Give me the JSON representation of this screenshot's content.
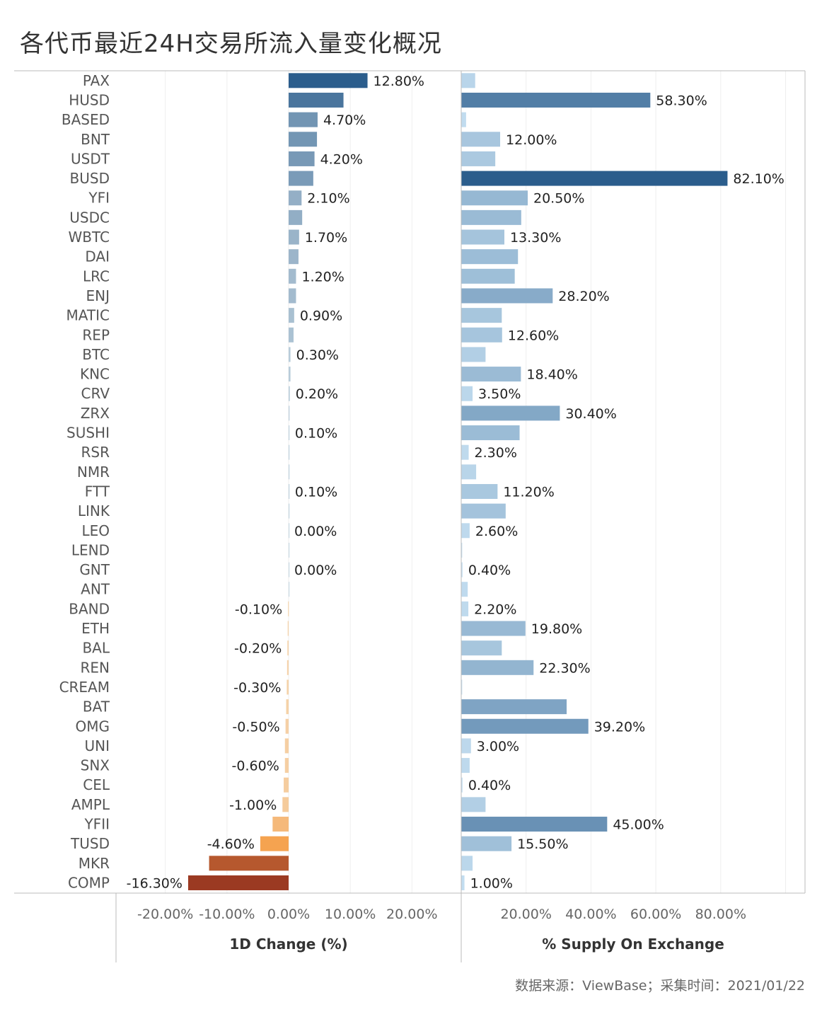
{
  "title": "各代币最近24H交易所流入量变化概况",
  "source": "数据来源：ViewBase；采集时间：2021/01/22",
  "chart_data": {
    "type": "bar",
    "orientation": "horizontal",
    "categories": [
      "PAX",
      "HUSD",
      "BASED",
      "BNT",
      "USDT",
      "BUSD",
      "YFI",
      "USDC",
      "WBTC",
      "DAI",
      "LRC",
      "ENJ",
      "MATIC",
      "REP",
      "BTC",
      "KNC",
      "CRV",
      "ZRX",
      "SUSHI",
      "RSR",
      "NMR",
      "FTT",
      "LINK",
      "LEO",
      "LEND",
      "GNT",
      "ANT",
      "BAND",
      "ETH",
      "BAL",
      "REN",
      "CREAM",
      "BAT",
      "OMG",
      "UNI",
      "SNX",
      "CEL",
      "AMPL",
      "YFII",
      "TUSD",
      "MKR",
      "COMP"
    ],
    "panels": [
      {
        "name": "1D Change (%)",
        "xlabel": "1D Change (%)",
        "xlim": [
          -28,
          28
        ],
        "ticks": [
          -20,
          -10,
          0,
          10,
          20
        ],
        "tick_labels": [
          "-20.00%",
          "-10.00%",
          "0.00%",
          "10.00%",
          "20.00%"
        ],
        "values": [
          12.8,
          8.9,
          4.7,
          4.6,
          4.2,
          4.0,
          2.1,
          2.2,
          1.7,
          1.6,
          1.2,
          1.2,
          0.9,
          0.8,
          0.3,
          0.3,
          0.2,
          0.15,
          0.1,
          0.1,
          0.1,
          0.1,
          0.05,
          0.0,
          0.0,
          0.0,
          0.0,
          -0.1,
          -0.15,
          -0.2,
          -0.25,
          -0.3,
          -0.4,
          -0.5,
          -0.6,
          -0.6,
          -0.8,
          -1.0,
          -2.6,
          -4.6,
          -12.9,
          -16.3
        ],
        "labels": [
          "12.80%",
          "",
          "4.70%",
          "",
          "4.20%",
          "",
          "2.10%",
          "",
          "1.70%",
          "",
          "1.20%",
          "",
          "0.90%",
          "",
          "0.30%",
          "",
          "0.20%",
          "",
          "0.10%",
          "",
          "",
          "0.10%",
          "",
          "0.00%",
          "",
          "0.00%",
          "",
          "-0.10%",
          "",
          "-0.20%",
          "",
          "-0.30%",
          "",
          "-0.50%",
          "",
          "-0.60%",
          "",
          "-1.00%",
          "",
          "-4.60%",
          "",
          "-16.30%"
        ]
      },
      {
        "name": "% Supply On Exchange",
        "xlabel": "% Supply On Exchange",
        "xlim": [
          0,
          106
        ],
        "ticks": [
          20,
          40,
          60,
          80
        ],
        "tick_labels": [
          "20.00%",
          "40.00%",
          "60.00%",
          "80.00%"
        ],
        "values": [
          4.3,
          58.3,
          1.5,
          12.0,
          10.5,
          82.1,
          20.5,
          18.5,
          13.3,
          17.5,
          16.5,
          28.2,
          12.5,
          12.6,
          7.5,
          18.4,
          3.5,
          30.4,
          18.0,
          2.3,
          4.6,
          11.2,
          13.7,
          2.6,
          0.3,
          0.4,
          2.0,
          2.2,
          19.8,
          12.5,
          22.3,
          0.3,
          32.5,
          39.2,
          3.0,
          2.6,
          0.4,
          7.5,
          45.0,
          15.5,
          3.5,
          1.0
        ],
        "labels": [
          "",
          "58.30%",
          "",
          "12.00%",
          "",
          "82.10%",
          "20.50%",
          "",
          "13.30%",
          "",
          "",
          "28.20%",
          "",
          "12.60%",
          "",
          "18.40%",
          "3.50%",
          "30.40%",
          "",
          "2.30%",
          "",
          "11.20%",
          "",
          "2.60%",
          "",
          "0.40%",
          "",
          "2.20%",
          "19.80%",
          "",
          "22.30%",
          "",
          "",
          "39.20%",
          "3.00%",
          "",
          "0.40%",
          "",
          "45.00%",
          "15.50%",
          "",
          "1.00%"
        ]
      }
    ],
    "colors": {
      "blue_dark": "#2b5d8c",
      "blue_light": "#c6e0f2",
      "orange_light": "#f5d6b0",
      "orange_mid": "#f5a04a",
      "red_dark": "#9b3a22",
      "axis": "#bbbbbb",
      "grid": "#eeeeee"
    }
  }
}
